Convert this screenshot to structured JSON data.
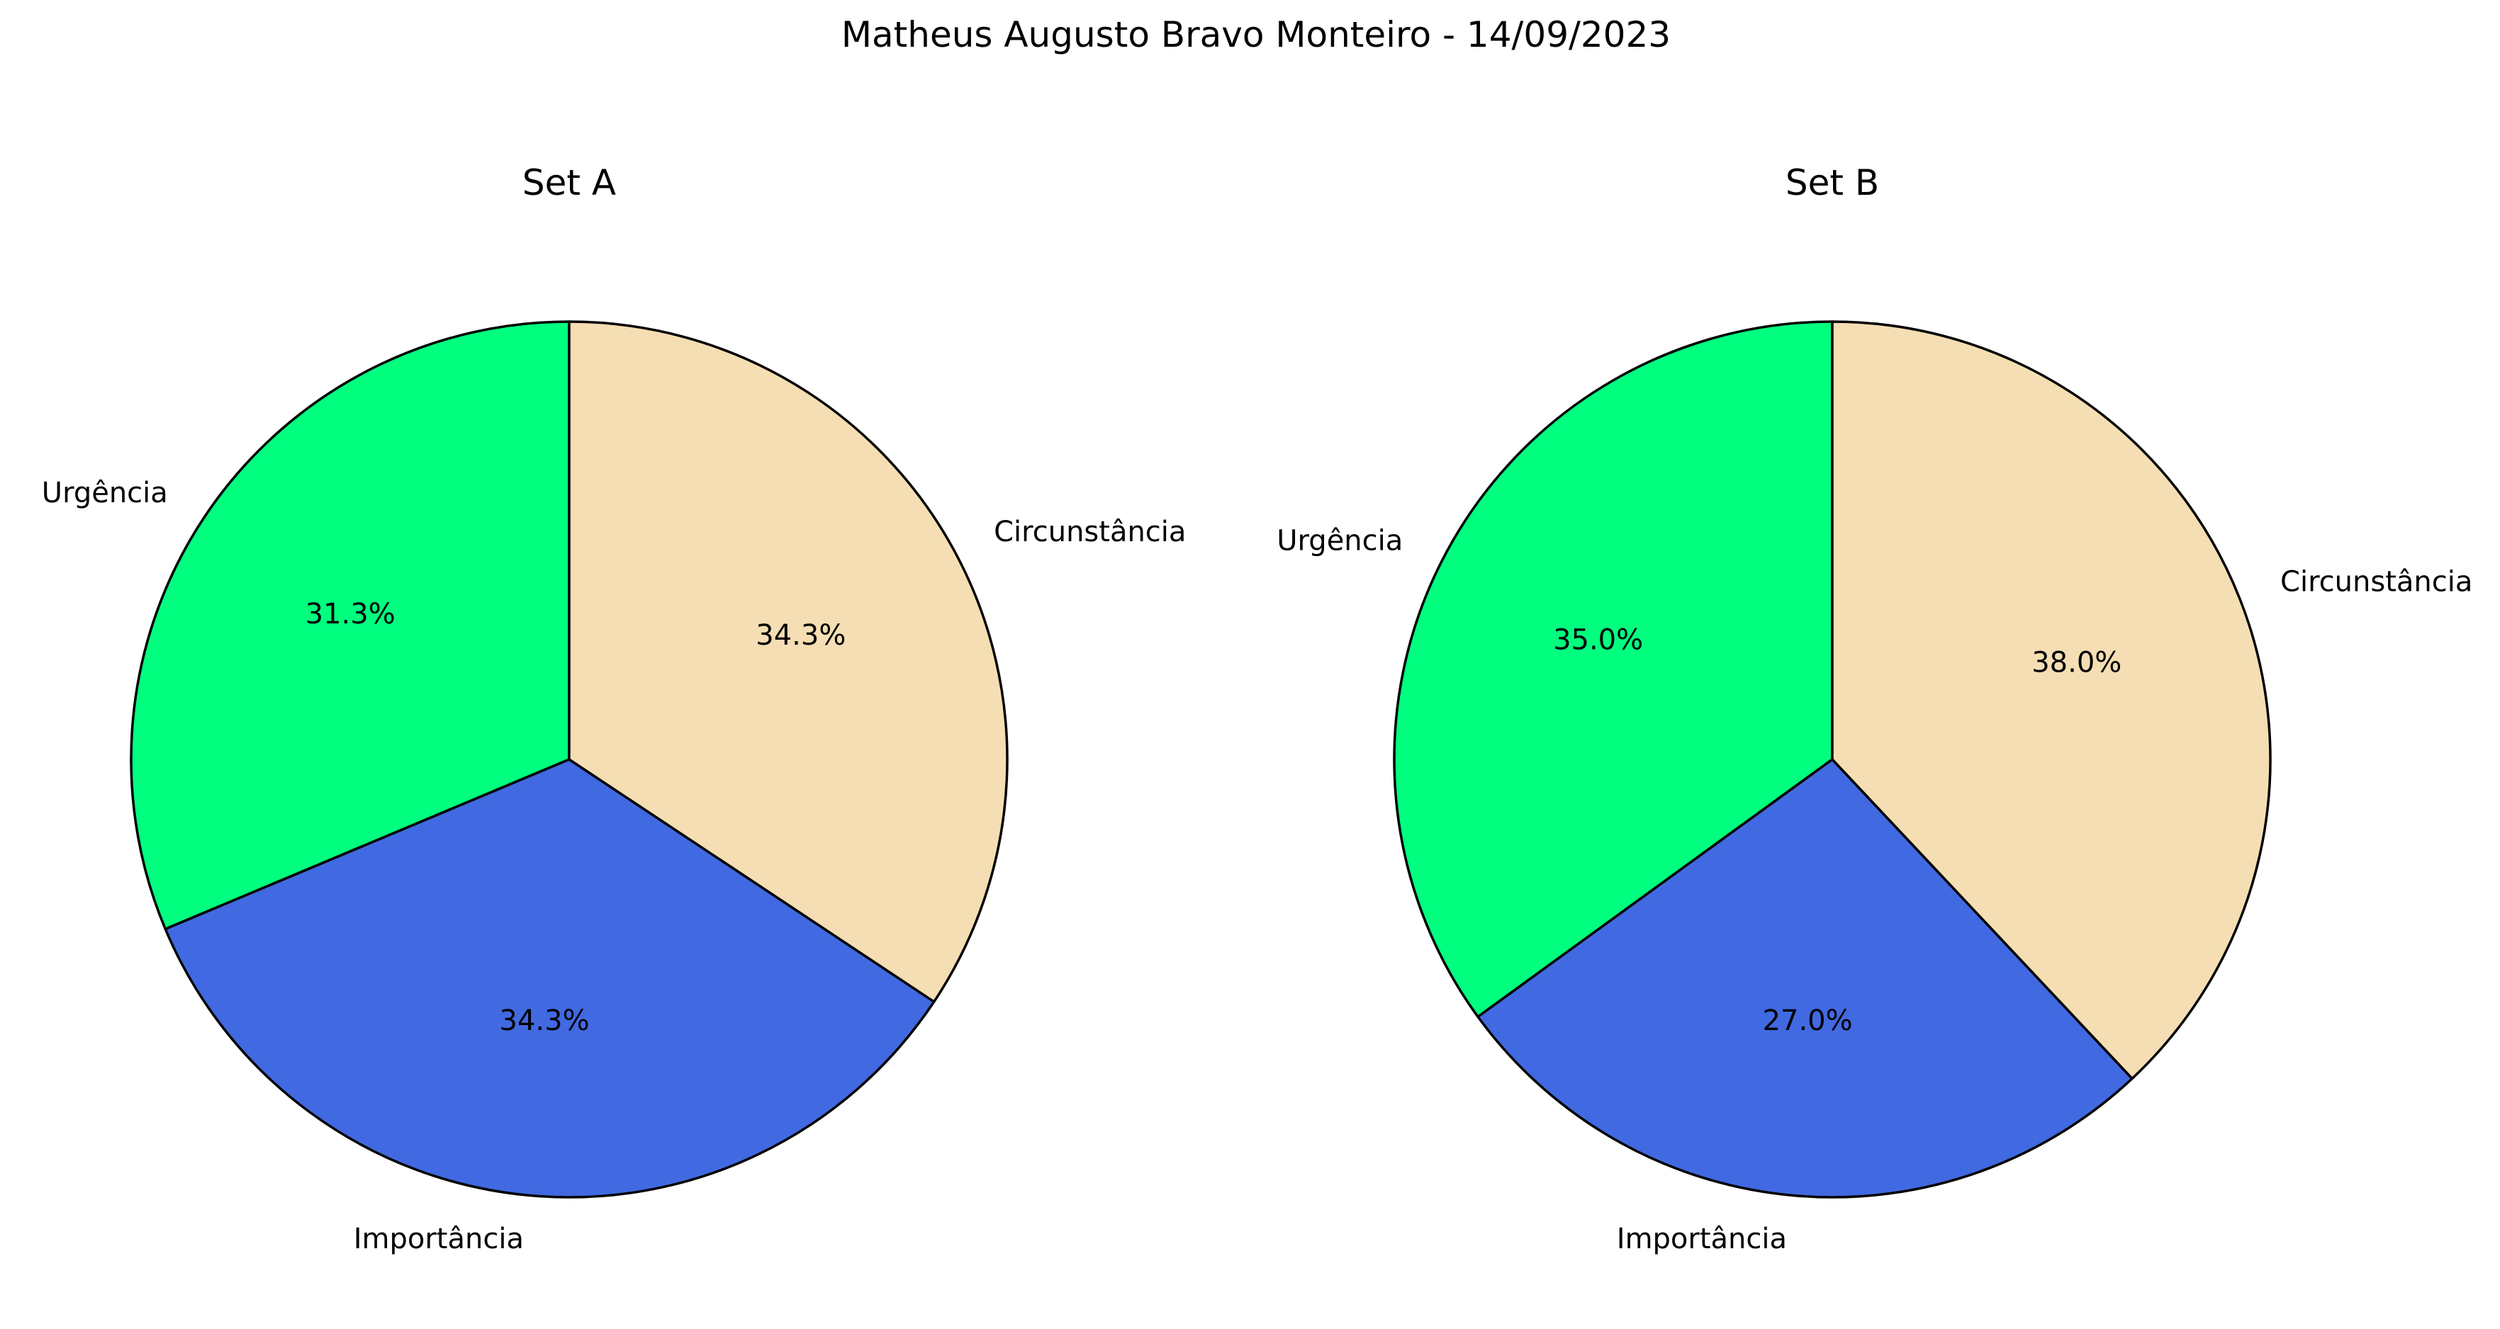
{
  "figure": {
    "suptitle": "Matheus Augusto Bravo Monteiro - 14/09/2023"
  },
  "chart_data": [
    {
      "type": "pie",
      "title": "Set A",
      "labels": [
        "Urgência",
        "Importância",
        "Circunstância"
      ],
      "values": [
        31.3,
        34.3,
        34.3
      ],
      "percent_labels": [
        "31.3%",
        "34.3%",
        "34.3%"
      ],
      "colors": [
        "#00FF7F",
        "#4169E1",
        "#F5DEB3"
      ],
      "edge_color": "#000000",
      "start_angle_deg": 90,
      "direction": "counterclockwise"
    },
    {
      "type": "pie",
      "title": "Set B",
      "labels": [
        "Urgência",
        "Importância",
        "Circunstância"
      ],
      "values": [
        35.0,
        27.0,
        38.0
      ],
      "percent_labels": [
        "35.0%",
        "27.0%",
        "38.0%"
      ],
      "colors": [
        "#00FF7F",
        "#4169E1",
        "#F5DEB3"
      ],
      "edge_color": "#000000",
      "start_angle_deg": 90,
      "direction": "counterclockwise"
    }
  ]
}
